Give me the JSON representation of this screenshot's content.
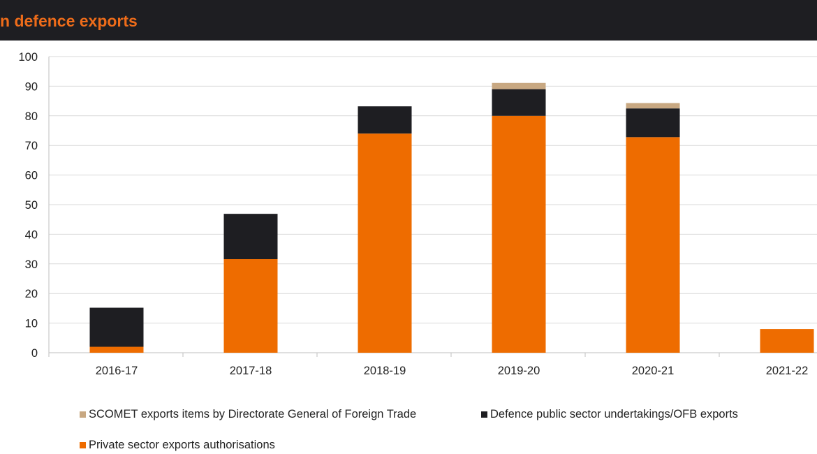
{
  "title": "n defence exports",
  "colors": {
    "title_bg": "#1e1e22",
    "title_text": "#ee6c1a",
    "grid": "#d9d9d9",
    "axis": "#bfbfbf"
  },
  "chart_data": {
    "type": "bar",
    "stacked": true,
    "categories": [
      "2016-17",
      "2017-18",
      "2018-19",
      "2019-20",
      "2020-21",
      "2021-22"
    ],
    "ylim": [
      0,
      100
    ],
    "yticks": [
      0,
      10,
      20,
      30,
      40,
      50,
      60,
      70,
      80,
      90,
      100
    ],
    "grid": true,
    "legend_position": "bottom",
    "series": [
      {
        "name": "Private sector exports authorisations",
        "color": "#ee6c00",
        "values": [
          2,
          31.6,
          74,
          80,
          72.8,
          8
        ]
      },
      {
        "name": "Defence public sector undertakings/OFB exports",
        "color": "#1e1e22",
        "values": [
          13.2,
          15.3,
          9.2,
          9,
          9.7,
          0
        ]
      },
      {
        "name": "SCOMET exports items by Directorate General of Foreign Trade",
        "color": "#c8a882",
        "values": [
          0,
          0,
          0,
          2.1,
          1.8,
          0
        ]
      }
    ]
  }
}
